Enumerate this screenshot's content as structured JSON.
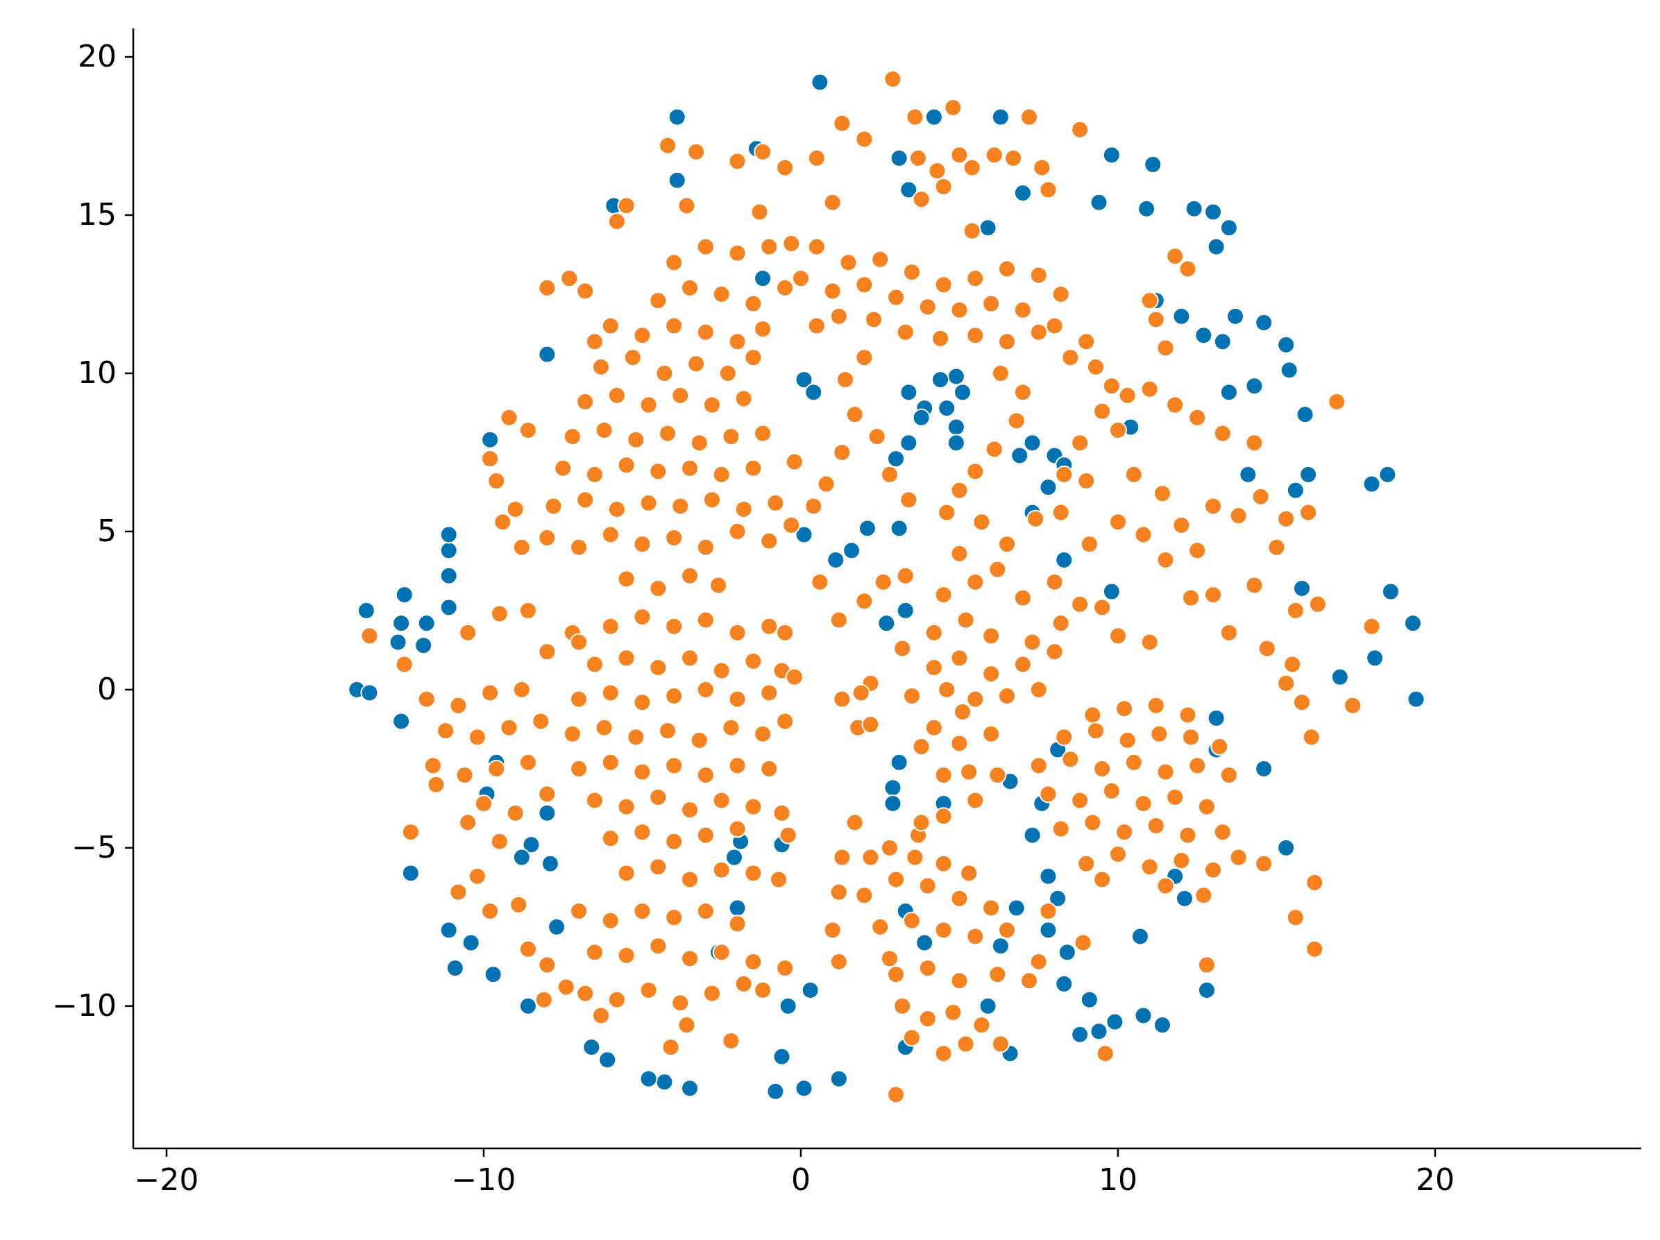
{
  "chart_data": {
    "type": "scatter",
    "xlim": [
      -21.05,
      26.5
    ],
    "ylim": [
      -14.5,
      20.9
    ],
    "xticks": [
      {
        "value": -20,
        "label": "−20"
      },
      {
        "value": -10,
        "label": "−10"
      },
      0,
      10,
      20
    ],
    "yticks": [
      {
        "value": -10,
        "label": "−10"
      },
      {
        "value": -5,
        "label": "−5"
      },
      0,
      5,
      10,
      15,
      20
    ],
    "grid": false,
    "series": [
      {
        "color": "#0173b2",
        "x": [
          0.6,
          -3.9,
          9.8,
          11.1,
          9.4,
          10.9,
          12.4,
          13.0,
          13.5,
          13.1,
          11.2,
          12.0,
          13.7,
          14.6,
          12.7,
          13.3,
          15.3,
          15.4,
          13.5,
          14.3,
          15.9,
          14.1,
          16.0,
          15.6,
          18.5,
          18.0,
          18.6,
          19.3,
          18.1,
          17.0,
          19.4,
          15.8,
          14.6,
          15.3,
          10.7,
          12.8,
          11.4,
          10.8,
          9.9,
          9.4,
          8.8,
          9.1,
          8.3,
          8.4,
          7.8,
          6.8,
          8.1,
          7.8,
          7.3,
          7.6,
          6.6,
          8.1,
          13.1,
          13.1,
          11.8,
          12.1,
          -0.6,
          -0.8,
          0.1,
          1.2,
          -3.5,
          -4.3,
          -4.8,
          -6.1,
          -6.6,
          -0.4,
          0.3,
          -2.6,
          -2.0,
          -1.9,
          -0.6,
          -2.1,
          -7.7,
          -8.6,
          -9.7,
          -10.9,
          -10.4,
          -11.1,
          -12.3,
          -8.5,
          -7.9,
          -8.8,
          -8.0,
          -9.9,
          -9.6,
          -12.6,
          -14.0,
          -13.6,
          -11.9,
          -12.7,
          -11.8,
          -12.6,
          -12.5,
          -13.7,
          -11.1,
          -11.1,
          -11.1,
          -11.1,
          -8.0,
          -9.8,
          -5.9,
          -3.9,
          -1.4,
          0.1,
          0.4,
          3.4,
          3.9,
          4.6,
          5.1,
          4.9,
          4.4,
          3.8,
          4.9,
          3.4,
          3.0,
          4.9,
          7.3,
          6.9,
          8.0,
          7.8,
          7.3,
          8.3,
          10.4,
          8.3,
          9.8,
          2.1,
          1.6,
          1.1,
          3.1,
          3.3,
          2.7,
          3.1,
          2.9,
          2.9,
          4.5,
          3.3,
          3.9,
          3.3,
          6.6,
          5.9,
          6.3,
          3.1,
          3.4,
          4.2,
          6.3,
          5.9,
          7.0,
          0.1,
          -1.2
        ],
        "values": [
          19.2,
          18.1,
          16.9,
          16.6,
          15.4,
          15.2,
          15.2,
          15.1,
          14.6,
          14.0,
          12.3,
          11.8,
          11.8,
          11.6,
          11.2,
          11.0,
          10.9,
          10.1,
          9.4,
          9.6,
          8.7,
          6.8,
          6.8,
          6.3,
          6.8,
          6.5,
          3.1,
          2.1,
          1.0,
          0.4,
          -0.3,
          3.2,
          -2.5,
          -5.0,
          -7.8,
          -9.5,
          -10.6,
          -10.3,
          -10.5,
          -10.8,
          -10.9,
          -9.8,
          -9.3,
          -8.3,
          -7.6,
          -6.9,
          -6.6,
          -5.9,
          -4.6,
          -3.6,
          -2.9,
          -1.9,
          -0.9,
          -1.9,
          -5.9,
          -6.6,
          -11.6,
          -12.7,
          -12.6,
          -12.3,
          -12.6,
          -12.4,
          -12.3,
          -11.7,
          -11.3,
          -10.0,
          -9.5,
          -8.3,
          -6.9,
          -4.8,
          -4.9,
          -5.3,
          -7.5,
          -10.0,
          -9.0,
          -8.8,
          -8.0,
          -7.6,
          -5.8,
          -4.9,
          -5.5,
          -5.3,
          -3.9,
          -3.3,
          -2.3,
          -1.0,
          0.0,
          -0.1,
          1.4,
          1.5,
          2.1,
          2.1,
          3.0,
          2.5,
          2.6,
          3.6,
          4.4,
          4.9,
          10.6,
          7.9,
          15.3,
          16.1,
          17.1,
          9.8,
          9.4,
          9.4,
          8.9,
          8.9,
          9.4,
          9.9,
          9.8,
          8.6,
          8.3,
          7.8,
          7.3,
          7.8,
          7.8,
          7.4,
          7.4,
          6.4,
          5.6,
          7.1,
          8.3,
          4.1,
          3.1,
          5.1,
          4.4,
          4.1,
          5.1,
          2.5,
          2.1,
          -2.3,
          -3.1,
          -3.6,
          -3.6,
          -7.0,
          -8.0,
          -11.3,
          -11.5,
          -10.0,
          -8.1,
          16.8,
          15.8,
          18.1,
          18.1,
          14.6,
          15.7,
          4.9,
          13.0
        ]
      },
      {
        "color": "#f5821f",
        "x": [
          2.9,
          4.8,
          3.6,
          7.2,
          8.8,
          1.3,
          2.0,
          -4.2,
          -3.3,
          -1.2,
          -0.5,
          -2.0,
          0.5,
          3.7,
          5.0,
          6.1,
          7.6,
          6.7,
          4.3,
          4.5,
          3.8,
          5.4,
          7.8,
          -5.5,
          -5.8,
          -1.3,
          -3.6,
          1.0,
          5.4,
          11.8,
          12.2,
          -4.0,
          -3.0,
          -2.0,
          -1.0,
          -0.3,
          -4.5,
          -3.5,
          -2.5,
          -1.5,
          -0.5,
          -5.0,
          -4.0,
          -3.0,
          -2.0,
          -1.2,
          -6.3,
          -5.3,
          -4.3,
          -3.3,
          -2.3,
          -1.5,
          -6.8,
          -5.8,
          -4.8,
          -3.8,
          -2.8,
          -1.8,
          -7.2,
          -6.2,
          -5.2,
          -4.2,
          -3.2,
          -2.2,
          -1.2,
          -7.5,
          -6.5,
          -5.5,
          -4.5,
          -3.5,
          -2.5,
          -1.5,
          -7.8,
          -6.8,
          -5.8,
          -4.8,
          -3.8,
          -2.8,
          -1.8,
          -0.8,
          -8.0,
          -7.0,
          -6.0,
          -5.0,
          -4.0,
          -3.0,
          -2.0,
          -1.0,
          -0.3,
          -5.5,
          -4.5,
          -3.5,
          -2.6,
          -8.0,
          -7.3,
          -6.8,
          -6.0,
          -6.5,
          -9.2,
          -8.6,
          -9.8,
          -9.6,
          -9.4,
          -8.8,
          -9.0,
          0.5,
          1.5,
          2.5,
          3.5,
          4.5,
          5.5,
          6.5,
          7.5,
          8.2,
          0.0,
          1.0,
          2.0,
          3.0,
          4.0,
          5.0,
          6.0,
          7.0,
          8.0,
          9.0,
          0.5,
          1.2,
          2.3,
          3.3,
          4.4,
          5.5,
          6.5,
          7.5,
          8.5,
          9.3,
          9.8,
          10.3,
          11.0,
          11.8,
          12.5,
          13.3,
          14.3,
          9.5,
          10.0,
          8.8,
          8.3,
          2.0,
          1.4,
          1.7,
          1.3,
          0.8,
          2.4,
          2.8,
          3.4,
          -0.2,
          0.4,
          6.3,
          7.0,
          6.8,
          6.1,
          5.5,
          5.0,
          4.6,
          11.2,
          11.5,
          11.0,
          16.9,
          -13.6,
          -12.5,
          -11.8,
          -10.5,
          -9.5,
          -8.6,
          -8.0,
          -7.2,
          -10.8,
          -9.8,
          -8.8,
          -11.2,
          -10.2,
          -9.2,
          -8.2,
          -11.6,
          -10.6,
          -9.6,
          -8.6,
          -11.5,
          -10.0,
          -9.0,
          -8.0,
          -12.3,
          -10.5,
          -9.5,
          -10.2,
          -10.8,
          -9.8,
          -8.9,
          -8.6,
          -8.0,
          -7.4,
          -8.1,
          -7.0,
          -6.0,
          -5.0,
          -4.0,
          -3.0,
          -2.0,
          -1.0,
          -0.5,
          -6.5,
          -5.5,
          -4.5,
          -3.5,
          -2.5,
          -1.5,
          -0.6,
          -7.0,
          -6.0,
          -5.0,
          -4.0,
          -3.0,
          -2.0,
          -1.0,
          -0.2,
          -7.2,
          -6.2,
          -5.2,
          -4.2,
          -3.2,
          -2.2,
          -1.2,
          -0.5,
          -7.0,
          -6.0,
          -5.0,
          -4.0,
          -3.0,
          -2.0,
          -1.0,
          -6.5,
          -5.5,
          -4.5,
          -3.5,
          -2.5,
          -1.5,
          -0.6,
          -6.0,
          -5.0,
          -4.0,
          -3.0,
          -2.0,
          -0.4,
          -5.5,
          -4.5,
          -3.5,
          -2.5,
          -1.5,
          -0.7,
          -7.0,
          -6.0,
          -5.0,
          -4.0,
          -3.0,
          -2.0,
          -6.5,
          -5.5,
          -4.5,
          -3.5,
          -2.5,
          -1.5,
          -0.5,
          -6.8,
          -5.8,
          -4.8,
          -3.8,
          -2.8,
          -1.8,
          -1.2,
          -6.3,
          -4.1,
          -2.2,
          -3.6,
          1.2,
          2.0,
          2.6,
          3.3,
          4.5,
          5.5,
          6.2,
          7.0,
          4.2,
          5.2,
          6.0,
          7.3,
          8.2,
          3.2,
          4.2,
          5.0,
          6.0,
          7.0,
          8.0,
          3.5,
          4.6,
          5.5,
          6.5,
          7.5,
          5.1,
          4.2,
          5.0,
          6.0,
          3.8,
          5.3,
          6.2,
          4.5,
          8.0,
          8.8,
          9.5,
          10.0,
          11.0,
          12.3,
          13.0,
          13.5,
          14.7,
          15.5,
          15.3,
          15.8,
          1.3,
          2.2,
          1.8,
          0.6,
          5.0,
          5.7,
          6.5,
          7.4,
          8.2,
          9.1,
          10.0,
          10.8,
          11.5,
          12.0,
          13.0,
          13.8,
          14.5,
          15.3,
          16.0,
          15.0,
          12.5,
          14.3,
          15.6,
          16.3,
          9.0,
          10.5,
          11.4,
          9.2,
          10.2,
          11.2,
          12.2,
          8.3,
          9.3,
          10.3,
          11.3,
          12.3,
          13.2,
          7.5,
          8.5,
          9.5,
          10.5,
          11.5,
          12.5,
          13.5,
          7.8,
          8.8,
          9.8,
          10.8,
          11.8,
          12.8,
          8.2,
          9.2,
          10.2,
          11.2,
          12.2,
          13.3,
          13.8,
          9.0,
          10.0,
          11.0,
          12.0,
          13.0,
          9.5,
          11.5,
          12.7,
          14.6,
          16.2,
          15.6,
          16.2,
          17.4,
          16.1,
          18.0,
          12.8,
          1.9,
          2.2,
          3.7,
          1.7,
          1.3,
          2.2,
          2.8,
          3.6,
          4.5,
          5.3,
          1.2,
          2.0,
          3.0,
          4.0,
          5.0,
          6.0,
          1.0,
          2.5,
          3.5,
          4.5,
          5.5,
          6.5,
          7.5,
          1.2,
          2.8,
          3.0,
          4.0,
          5.0,
          6.2,
          7.2,
          3.2,
          4.0,
          4.8,
          5.7,
          6.3,
          3.5,
          4.5,
          5.2,
          3.0,
          8.9,
          9.6,
          7.8,
          3.8,
          4.5,
          5.5
        ],
        "values": [
          19.3,
          18.4,
          18.1,
          18.1,
          17.7,
          17.9,
          17.4,
          17.2,
          17.0,
          17.0,
          16.5,
          16.7,
          16.8,
          16.8,
          16.9,
          16.9,
          16.5,
          16.8,
          16.4,
          15.9,
          15.5,
          16.5,
          15.8,
          15.3,
          14.8,
          15.1,
          15.3,
          15.4,
          14.5,
          13.7,
          13.3,
          13.5,
          14.0,
          13.8,
          14.0,
          14.1,
          12.3,
          12.7,
          12.5,
          12.2,
          12.7,
          11.2,
          11.5,
          11.3,
          11.0,
          11.4,
          10.2,
          10.5,
          10.0,
          10.3,
          10.0,
          10.5,
          9.1,
          9.3,
          9.0,
          9.3,
          9.0,
          9.2,
          8.0,
          8.2,
          7.9,
          8.1,
          7.8,
          8.0,
          8.1,
          7.0,
          6.8,
          7.1,
          6.9,
          7.0,
          6.8,
          7.0,
          5.8,
          6.0,
          5.7,
          5.9,
          5.8,
          6.0,
          5.7,
          5.9,
          4.8,
          4.5,
          4.9,
          4.6,
          4.8,
          4.5,
          5.0,
          4.7,
          5.2,
          3.5,
          3.2,
          3.6,
          3.3,
          12.7,
          13.0,
          12.6,
          11.5,
          11.0,
          8.6,
          8.2,
          7.3,
          6.6,
          5.3,
          4.5,
          5.7,
          14.0,
          13.5,
          13.6,
          13.2,
          12.8,
          13.0,
          13.3,
          13.1,
          12.5,
          13.0,
          12.6,
          12.8,
          12.4,
          12.1,
          12.0,
          12.2,
          12.0,
          11.5,
          11.0,
          11.5,
          11.8,
          11.7,
          11.3,
          11.1,
          11.2,
          11.0,
          11.3,
          10.5,
          10.2,
          9.6,
          9.3,
          9.5,
          9.0,
          8.6,
          8.1,
          7.8,
          8.8,
          8.2,
          7.8,
          6.8,
          10.5,
          9.8,
          8.7,
          7.5,
          6.5,
          8.0,
          6.8,
          6.0,
          7.2,
          5.8,
          10.0,
          9.4,
          8.5,
          7.6,
          6.9,
          6.3,
          5.6,
          11.7,
          10.8,
          12.3,
          9.1,
          1.7,
          0.8,
          -0.3,
          1.8,
          2.4,
          2.5,
          1.2,
          1.8,
          -0.5,
          -0.1,
          0.0,
          -1.3,
          -1.5,
          -1.2,
          -1.0,
          -2.4,
          -2.7,
          -2.5,
          -2.3,
          -3.0,
          -3.6,
          -3.9,
          -3.3,
          -4.5,
          -4.2,
          -4.8,
          -5.9,
          -6.4,
          -7.0,
          -6.8,
          -8.2,
          -8.7,
          -9.4,
          -9.8,
          1.5,
          2.0,
          2.3,
          2.0,
          2.2,
          1.8,
          2.0,
          1.8,
          0.8,
          1.0,
          0.7,
          1.0,
          0.6,
          0.9,
          0.6,
          -0.3,
          -0.1,
          -0.4,
          -0.2,
          0.0,
          -0.3,
          -0.1,
          0.4,
          -1.4,
          -1.2,
          -1.5,
          -1.3,
          -1.6,
          -1.2,
          -1.4,
          -1.0,
          -2.5,
          -2.3,
          -2.6,
          -2.4,
          -2.7,
          -2.4,
          -2.5,
          -3.5,
          -3.7,
          -3.4,
          -3.8,
          -3.5,
          -3.7,
          -3.9,
          -4.7,
          -4.5,
          -4.8,
          -4.6,
          -4.4,
          -4.6,
          -5.8,
          -5.6,
          -6.0,
          -5.7,
          -5.8,
          -6.0,
          -7.0,
          -7.3,
          -7.0,
          -7.2,
          -7.0,
          -7.4,
          -8.3,
          -8.4,
          -8.1,
          -8.5,
          -8.3,
          -8.6,
          -8.8,
          -9.6,
          -9.8,
          -9.5,
          -9.9,
          -9.6,
          -9.3,
          -9.5,
          -10.3,
          -11.3,
          -11.1,
          -10.6,
          2.2,
          2.8,
          3.4,
          3.6,
          3.0,
          3.4,
          3.8,
          2.9,
          1.8,
          2.2,
          1.7,
          1.5,
          2.1,
          1.3,
          0.7,
          1.0,
          0.5,
          0.8,
          1.2,
          -0.2,
          0.0,
          -0.3,
          -0.2,
          0.0,
          -0.7,
          -1.2,
          -1.7,
          -1.4,
          -1.8,
          -2.6,
          -2.7,
          -2.7,
          3.4,
          2.7,
          2.6,
          1.7,
          1.5,
          2.9,
          3.0,
          1.8,
          1.3,
          0.8,
          0.2,
          -0.4,
          -0.3,
          0.2,
          -1.2,
          3.4,
          4.3,
          5.3,
          4.6,
          5.4,
          5.6,
          4.6,
          5.3,
          4.9,
          4.1,
          5.2,
          5.8,
          5.5,
          6.1,
          5.4,
          5.6,
          4.5,
          4.4,
          3.3,
          2.5,
          2.7,
          6.6,
          6.8,
          6.2,
          -0.8,
          -0.6,
          -0.5,
          -0.8,
          -1.5,
          -1.3,
          -1.6,
          -1.4,
          -1.5,
          -1.8,
          -2.4,
          -2.2,
          -2.5,
          -2.3,
          -2.6,
          -2.4,
          -2.7,
          -3.3,
          -3.5,
          -3.2,
          -3.6,
          -3.4,
          -3.7,
          -4.4,
          -4.2,
          -4.5,
          -4.3,
          -4.6,
          -4.5,
          -5.3,
          -5.5,
          -5.2,
          -5.6,
          -5.4,
          -5.7,
          -6.0,
          -6.2,
          -6.5,
          -5.5,
          -6.1,
          -7.2,
          -8.2,
          -0.5,
          -1.5,
          2.0,
          -8.7,
          -0.1,
          -1.1,
          -4.6,
          -4.2,
          -5.3,
          -5.3,
          -5.0,
          -5.3,
          -5.5,
          -5.8,
          -6.4,
          -6.5,
          -6.0,
          -6.2,
          -6.6,
          -6.9,
          -7.6,
          -7.5,
          -7.3,
          -7.6,
          -7.8,
          -7.6,
          -8.6,
          -8.6,
          -8.5,
          -9.0,
          -8.8,
          -9.2,
          -9.0,
          -9.2,
          -10.0,
          -10.4,
          -10.2,
          -10.6,
          -11.2,
          -11.0,
          -11.5,
          -11.2,
          -12.8,
          -8.0,
          -11.5,
          -7.0,
          -4.2,
          -4.0,
          -3.5
        ]
      }
    ]
  }
}
